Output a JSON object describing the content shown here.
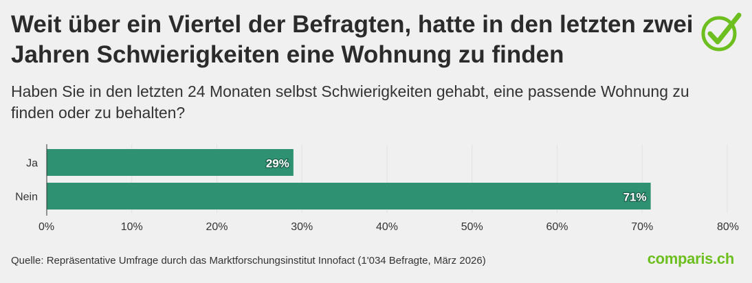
{
  "title": "Weit über ein Viertel der Befragten, hatte in den letzten zwei Jahren Schwierigkeiten eine Wohnung zu finden",
  "subtitle": "Haben Sie in den letzten 24 Monaten selbst Schwierigkeiten gehabt, eine passende Wohnung zu finden oder zu behalten?",
  "source": "Quelle: Repräsentative Umfrage durch das Marktforschungsinstitut Innofact (1'034 Befragte, März 2026)",
  "brand": "comparis.ch",
  "logo_icon": "checkmark-circle-icon",
  "colors": {
    "bar": "#2e9172",
    "brand": "#6cbf1f",
    "background": "#f0f0f0"
  },
  "chart_data": {
    "type": "bar",
    "orientation": "horizontal",
    "categories": [
      "Ja",
      "Nein"
    ],
    "values": [
      29,
      71
    ],
    "data_labels": [
      "29%",
      "71%"
    ],
    "xlim": [
      0,
      80
    ],
    "x_ticks": [
      0,
      10,
      20,
      30,
      40,
      50,
      60,
      70,
      80
    ],
    "x_tick_labels": [
      "0%",
      "10%",
      "20%",
      "30%",
      "40%",
      "50%",
      "60%",
      "70%",
      "80%"
    ],
    "grid": true,
    "legend": "none"
  }
}
